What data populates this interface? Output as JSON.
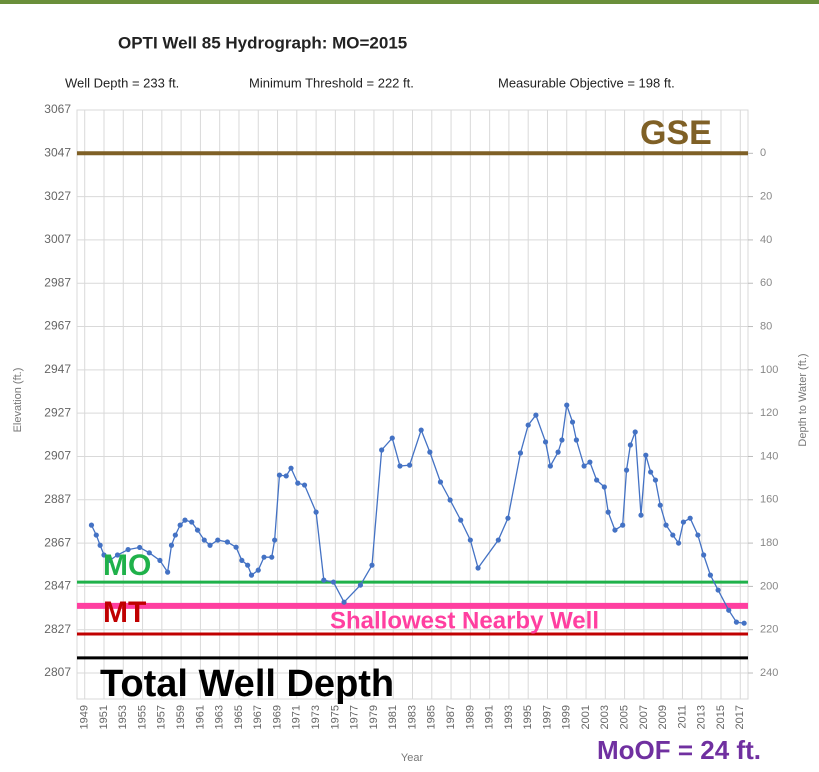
{
  "chart_data": {
    "type": "line",
    "title": "OPTI Well 85 Hydrograph: MO=2015",
    "subtitles": [
      "Well Depth = 233 ft.",
      "Minimum Threshold = 222 ft.",
      "Measurable Objective = 198 ft."
    ],
    "xlabel": "Year",
    "ylabel": "Elevation (ft.)",
    "y2label": "Depth to Water (ft.)",
    "xlim": [
      1948.2,
      2017.8
    ],
    "xticks": [
      1949,
      1951,
      1953,
      1955,
      1957,
      1959,
      1961,
      1963,
      1965,
      1967,
      1969,
      1971,
      1973,
      1975,
      1977,
      1979,
      1981,
      1983,
      1985,
      1987,
      1989,
      1991,
      1993,
      1995,
      1997,
      1999,
      2001,
      2003,
      2005,
      2007,
      2009,
      2011,
      2013,
      2015,
      2017
    ],
    "ylim": [
      2795,
      3067
    ],
    "yticks": [
      2807,
      2827,
      2847,
      2867,
      2887,
      2907,
      2927,
      2947,
      2967,
      2987,
      3007,
      3027,
      3047,
      3067
    ],
    "y2lim": [
      252,
      -20
    ],
    "y2ticks": [
      0,
      20,
      40,
      60,
      80,
      100,
      120,
      140,
      160,
      180,
      200,
      220,
      240
    ],
    "grid": true,
    "series": [
      {
        "color": "#4472c4",
        "x": [
          1949.7,
          1950.2,
          1950.6,
          1951.0,
          1951.6,
          1952.4,
          1953.5,
          1954.7,
          1955.7,
          1956.8,
          1957.6,
          1958.0,
          1958.4,
          1958.9,
          1959.4,
          1960.1,
          1960.7,
          1961.4,
          1962.0,
          1962.8,
          1963.8,
          1964.7,
          1965.3,
          1965.9,
          1966.3,
          1967.0,
          1967.6,
          1968.4,
          1968.7,
          1969.2,
          1969.9,
          1970.4,
          1971.1,
          1971.8,
          1973.0,
          1973.8,
          1974.8,
          1975.9,
          1977.6,
          1978.8,
          1979.8,
          1980.9,
          1981.7,
          1982.7,
          1983.9,
          1984.8,
          1985.9,
          1986.9,
          1988.0,
          1989.0,
          1989.8,
          1991.9,
          1992.9,
          1994.2,
          1995.0,
          1995.8,
          1996.8,
          1997.3,
          1998.1,
          1998.5,
          1999.0,
          1999.6,
          2000.0,
          2000.8,
          2001.4,
          2002.1,
          2002.9,
          2003.3,
          2004.0,
          2004.8,
          2005.2,
          2005.6,
          2006.1,
          2006.7,
          2007.2,
          2007.7,
          2008.2,
          2008.7,
          2009.3,
          2010.0,
          2010.6,
          2011.1,
          2011.8,
          2012.6,
          2013.2,
          2013.9,
          2014.7,
          2015.8,
          2016.6,
          2017.4
        ],
        "values": [
          2875.3,
          2870.7,
          2866,
          2861.5,
          2859,
          2861.5,
          2864,
          2865,
          2862.5,
          2859,
          2853.6,
          2866,
          2870.7,
          2875.3,
          2877.6,
          2876.7,
          2873,
          2868.4,
          2866,
          2868.4,
          2867.5,
          2865.1,
          2859,
          2856.8,
          2852.2,
          2854.5,
          2860.5,
          2860.5,
          2868.4,
          2898.4,
          2898,
          2901.6,
          2894.7,
          2893.8,
          2881.3,
          2849.9,
          2849,
          2839.7,
          2847.6,
          2856.8,
          2910,
          2915.5,
          2902.6,
          2903,
          2919.2,
          2909,
          2895.2,
          2886.9,
          2877.6,
          2868.4,
          2855.5,
          2868.4,
          2878.5,
          2908.6,
          2921.5,
          2926.1,
          2913.7,
          2902.6,
          2909,
          2914.6,
          2930.7,
          2922.9,
          2914.6,
          2902.6,
          2904.4,
          2896.1,
          2892.9,
          2881.3,
          2873,
          2875.3,
          2900.7,
          2912.3,
          2918.3,
          2879.9,
          2907.6,
          2899.8,
          2896.1,
          2884.5,
          2875.3,
          2870.7,
          2867,
          2876.7,
          2878.5,
          2870.7,
          2861.5,
          2852.2,
          2845.3,
          2836,
          2830.5,
          2830
        ]
      }
    ],
    "reference_lines": [
      {
        "label": "GSE",
        "value": 3047,
        "color": "#7f6026"
      },
      {
        "label": "MO",
        "value": 2849,
        "color": "#1fb14a"
      },
      {
        "label": "Shallowest Nearby Well",
        "value": 2838,
        "color": "#ff3fa0"
      },
      {
        "label": "MT",
        "value": 2825,
        "color": "#c00000"
      },
      {
        "label": "Total Well Depth",
        "value": 2814,
        "color": "#000000"
      }
    ],
    "annotations": [
      {
        "text": "MoOF = 24 ft.",
        "color": "#7030a0"
      }
    ]
  }
}
